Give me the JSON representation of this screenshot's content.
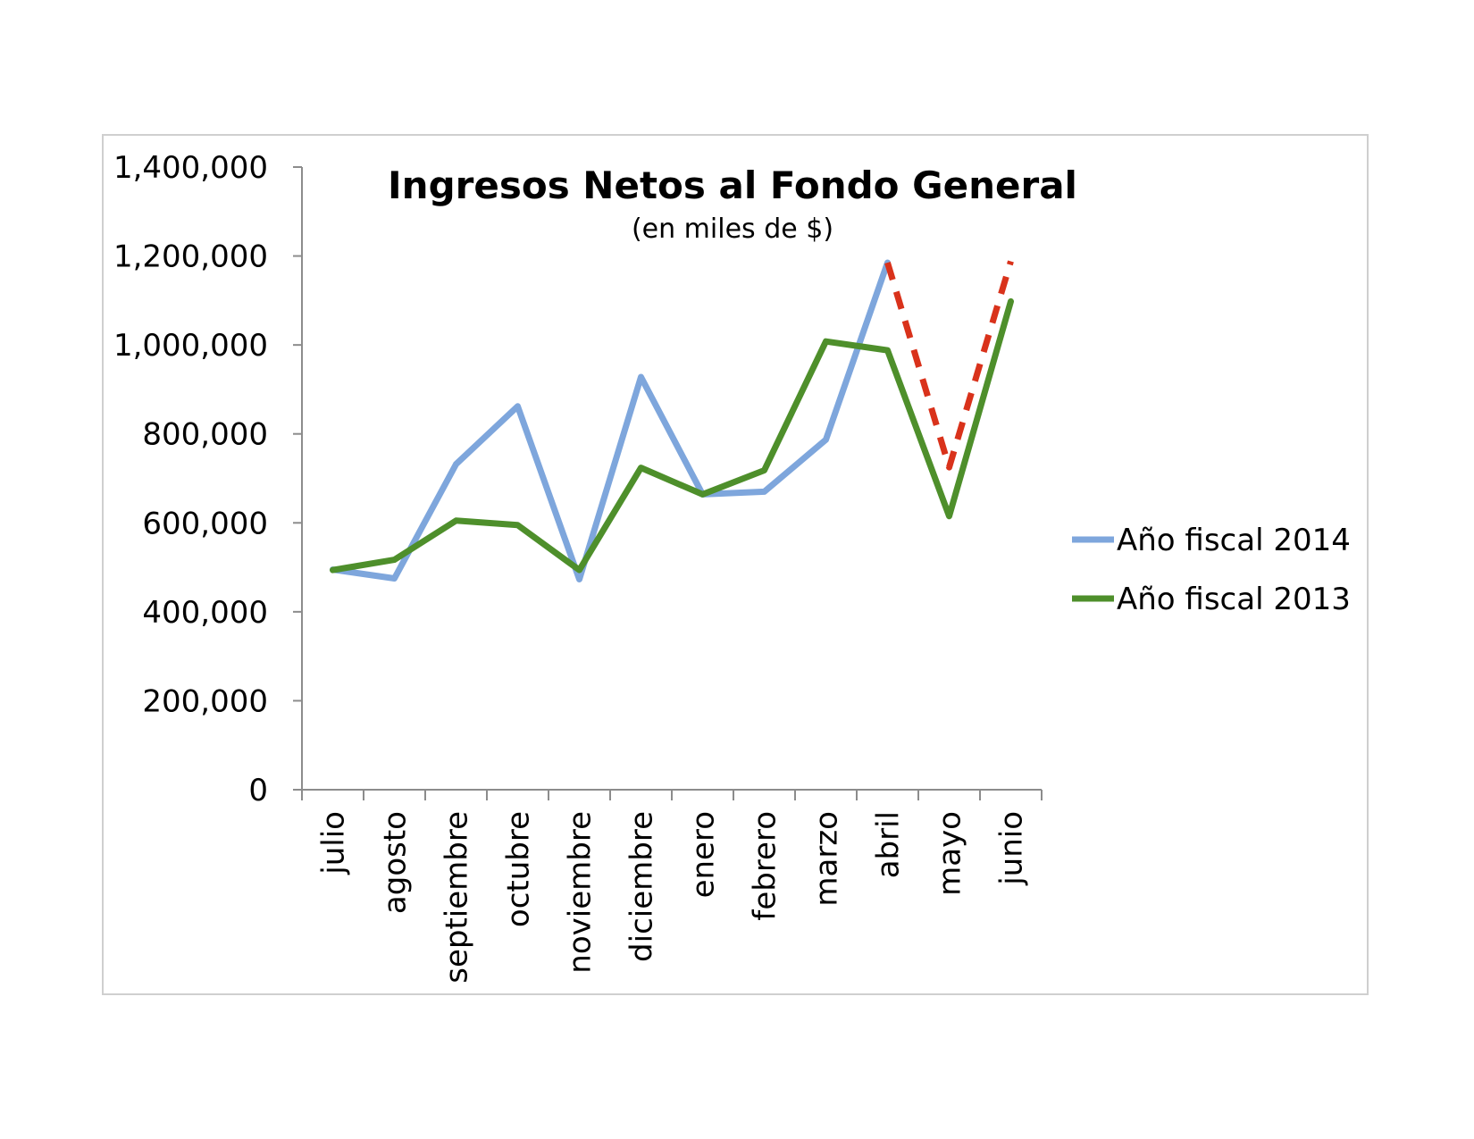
{
  "chart_data": {
    "type": "line",
    "title": "Ingresos Netos al Fondo General",
    "subtitle": "(en miles de $)",
    "xlabel": "",
    "ylabel": "",
    "ylim": [
      0,
      1400000
    ],
    "yticks": [
      0,
      200000,
      400000,
      600000,
      800000,
      1000000,
      1200000,
      1400000
    ],
    "ytick_labels": [
      "0",
      "200,000",
      "400,000",
      "600,000",
      "800,000",
      "1,000,000",
      "1,200,000",
      "1,400,000"
    ],
    "categories": [
      "julio",
      "agosto",
      "septiembre",
      "octubre",
      "noviembre",
      "diciembre",
      "enero",
      "febrero",
      "marzo",
      "abril",
      "mayo",
      "junio"
    ],
    "grid": false,
    "legend_position": "right",
    "series": [
      {
        "name": "Año fiscal 2014",
        "color": "#7ea6dc",
        "values": [
          495000,
          475000,
          732000,
          862000,
          473000,
          928000,
          664000,
          670000,
          787000,
          1185000,
          null,
          null
        ]
      },
      {
        "name": "Año fiscal 2013",
        "color": "#4e8f2b",
        "values": [
          494000,
          517000,
          605000,
          595000,
          494000,
          724000,
          664000,
          718000,
          1008000,
          988000,
          615000,
          1098000
        ]
      },
      {
        "name": "",
        "color": "#d9321b",
        "dashed": true,
        "values": [
          null,
          null,
          null,
          null,
          null,
          null,
          null,
          null,
          null,
          1185000,
          725000,
          1188000
        ]
      }
    ]
  }
}
